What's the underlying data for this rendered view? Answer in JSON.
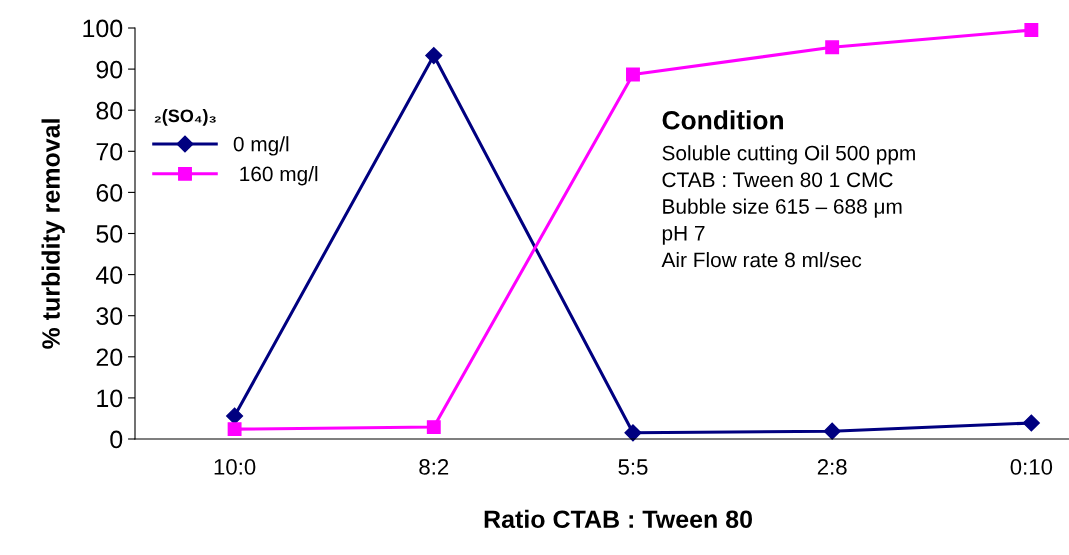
{
  "chart_data": {
    "type": "line",
    "xlabel": "Ratio CTAB : Tween 80",
    "ylabel": "% turbidity removal",
    "categories": [
      "10:0",
      "8:2",
      "5:5",
      "2:8",
      "0:10"
    ],
    "legend_title": "₂(SO₄)₃",
    "legend": "left",
    "series": [
      {
        "name": "0 mg/l",
        "color": "#000080",
        "marker": "diamond",
        "values": [
          5.6,
          93.3,
          1.5,
          1.9,
          3.9
        ]
      },
      {
        "name": " 160 mg/l",
        "color": "#ff00ff",
        "marker": "square",
        "values": [
          2.4,
          2.9,
          88.7,
          95.3,
          99.5
        ]
      }
    ],
    "ylim": [
      0,
      100
    ],
    "yticks": [
      0,
      10,
      20,
      30,
      40,
      50,
      60,
      70,
      80,
      90,
      100
    ],
    "grid": false,
    "annotations": [
      "Condition",
      "Soluble cutting Oil 500 ppm",
      "CTAB : Tween 80 1 CMC",
      "Bubble size 615 – 688 μm",
      "pH 7",
      "Air Flow rate 8 ml/sec"
    ]
  }
}
